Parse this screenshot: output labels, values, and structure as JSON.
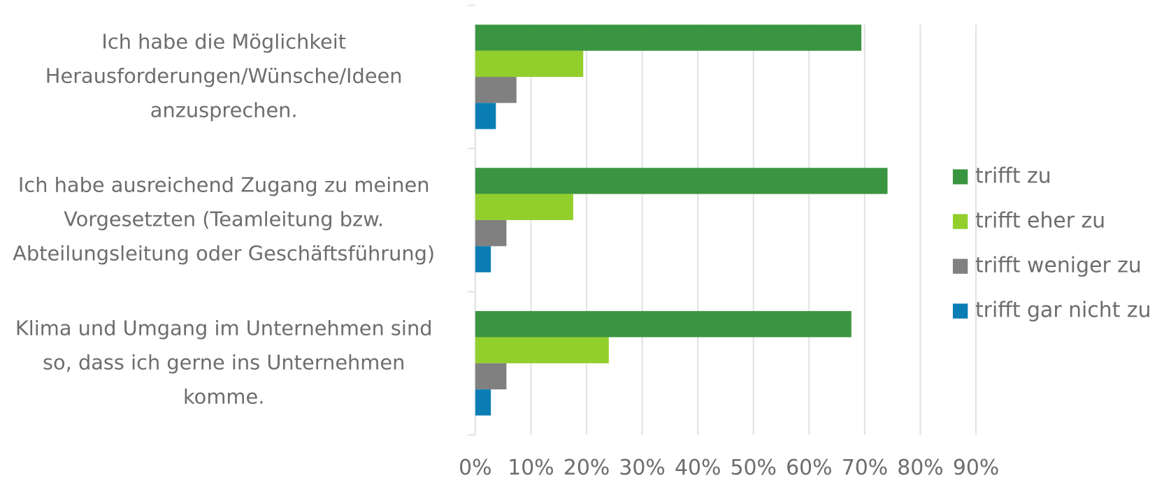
{
  "chart_data": {
    "type": "bar",
    "orientation": "horizontal",
    "categories": [
      "Ich habe die Möglichkeit Herausforderungen/Wünsche/Ideen anzusprechen.",
      "Ich habe ausreichend Zugang zu meinen Vorgesetzten (Teamleitung bzw. Abteilungsleitung oder Geschäftsführung)",
      "Klima und Umgang im Unternehmen sind so, dass ich gerne ins Unternehmen komme."
    ],
    "series": [
      {
        "name": "trifft zu",
        "color": "#3a9540",
        "values": [
          69.4,
          74.1,
          67.6
        ]
      },
      {
        "name": "trifft eher zu",
        "color": "#92cf2c",
        "values": [
          19.4,
          17.6,
          24
        ]
      },
      {
        "name": "trifft weniger zu",
        "color": "#808080",
        "values": [
          7.4,
          5.6,
          5.6
        ]
      },
      {
        "name": "trifft gar nicht zu",
        "color": "#0a7db5",
        "values": [
          3.7,
          2.8,
          2.8
        ]
      }
    ],
    "xlim": [
      0,
      90
    ],
    "xticks": [
      {
        "value": 0,
        "label": "0%"
      },
      {
        "value": 10,
        "label": "10%"
      },
      {
        "value": 20,
        "label": "20%"
      },
      {
        "value": 30,
        "label": "30%"
      },
      {
        "value": 40,
        "label": "40%"
      },
      {
        "value": 50,
        "label": "50%"
      },
      {
        "value": 60,
        "label": "60%"
      },
      {
        "value": 70,
        "label": "70%"
      },
      {
        "value": 80,
        "label": "80%"
      },
      {
        "value": 90,
        "label": "90%"
      }
    ],
    "grid": true,
    "legend": "right"
  }
}
